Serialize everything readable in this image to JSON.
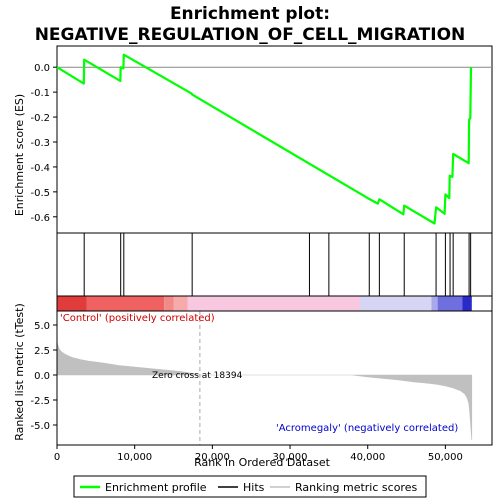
{
  "chart_data": {
    "type": "line",
    "title": "Enrichment plot: NEGATIVE_REGULATION_OF_CELL_MIGRATION",
    "top_panel": {
      "ylabel": "Enrichment score (ES)",
      "ylim": [
        -0.665,
        0.085
      ],
      "yticks": [
        "0.0",
        "-0.1",
        "-0.2",
        "-0.3",
        "-0.4",
        "-0.5",
        "-0.6"
      ],
      "yticks_values": [
        0.0,
        -0.1,
        -0.2,
        -0.3,
        -0.4,
        -0.5,
        -0.6
      ],
      "series": [
        {
          "name": "Enrichment profile",
          "color": "#00ff00",
          "x": [
            0,
            3450,
            3500,
            8150,
            8200,
            8550,
            8600,
            17300,
            17400,
            40000,
            41300,
            41500,
            44600,
            44700,
            48600,
            48800,
            49900,
            50000,
            50500,
            50550,
            50900,
            51000,
            53000,
            53050,
            53200,
            53300
          ],
          "y": [
            0.0,
            -0.066,
            0.03,
            -0.055,
            0.0,
            -0.005,
            0.05,
            -0.105,
            -0.11,
            -0.525,
            -0.547,
            -0.53,
            -0.59,
            -0.555,
            -0.627,
            -0.562,
            -0.588,
            -0.51,
            -0.525,
            -0.435,
            -0.44,
            -0.348,
            -0.385,
            -0.21,
            -0.205,
            0.0
          ]
        }
      ]
    },
    "hits": {
      "name": "Hits",
      "positions": [
        3500,
        8200,
        8600,
        17400,
        32500,
        35000,
        40200,
        41500,
        44700,
        48800,
        50000,
        50600,
        51000,
        53050,
        53250
      ]
    },
    "heatmap_bar": {
      "segments": [
        {
          "from": 0,
          "to": 3800,
          "color": "#e03c3c"
        },
        {
          "from": 3800,
          "to": 13800,
          "color": "#f06262"
        },
        {
          "from": 13800,
          "to": 15000,
          "color": "#f28a8a"
        },
        {
          "from": 15000,
          "to": 16800,
          "color": "#f7aaaa"
        },
        {
          "from": 16800,
          "to": 39000,
          "color": "#f8c8e0"
        },
        {
          "from": 39000,
          "to": 48200,
          "color": "#d6d6f4"
        },
        {
          "from": 48200,
          "to": 49000,
          "color": "#a8a8ec"
        },
        {
          "from": 49000,
          "to": 52200,
          "color": "#6f6fe0"
        },
        {
          "from": 52200,
          "to": 53400,
          "color": "#2a2ac8"
        }
      ]
    },
    "bottom_panel": {
      "ylabel": "Ranked list metric (tTest)",
      "xlabel": "Rank in Ordered Dataset",
      "xlim": [
        0,
        56000
      ],
      "ylim": [
        -7,
        6.4
      ],
      "xticks": [
        "0",
        "10,000",
        "20,000",
        "30,000",
        "40,000",
        "50,000"
      ],
      "xticks_values": [
        0,
        10000,
        20000,
        30000,
        40000,
        50000
      ],
      "yticks": [
        "5.0",
        "2.5",
        "0.0",
        "-2.5",
        "-5.0"
      ],
      "yticks_values": [
        5.0,
        2.5,
        0.0,
        -2.5,
        -5.0
      ],
      "metric_profile": {
        "name": "Ranking metric scores",
        "color": "#c0c0c0",
        "x": [
          0,
          100,
          300,
          600,
          1000,
          1500,
          2000,
          3000,
          4000,
          6000,
          8000,
          10000,
          12000,
          14000,
          16000,
          17500,
          18394,
          20000,
          25000,
          30000,
          35000,
          38000,
          40000,
          42000,
          44000,
          46000,
          48000,
          49000,
          50000,
          51000,
          52000,
          52500,
          52800,
          53000,
          53100,
          53200,
          53300,
          53400
        ],
        "y": [
          3.4,
          3.0,
          2.6,
          2.3,
          2.1,
          1.9,
          1.75,
          1.55,
          1.4,
          1.2,
          0.95,
          0.8,
          0.65,
          0.5,
          0.35,
          0.15,
          0.0,
          0.0,
          0.0,
          0.0,
          0.0,
          0.0,
          -0.2,
          -0.35,
          -0.5,
          -0.7,
          -0.85,
          -0.95,
          -1.1,
          -1.3,
          -1.6,
          -1.9,
          -2.3,
          -2.8,
          -3.5,
          -4.5,
          -5.5,
          -6.5
        ]
      },
      "zero_cross": 18394,
      "zero_cross_label": "Zero cross at 18394",
      "positive_label": "'Control' (positively correlated)",
      "negative_label": "'Acromegaly' (negatively correlated)"
    },
    "legend": [
      {
        "label": "Enrichment profile",
        "color": "#00ff00"
      },
      {
        "label": "Hits",
        "color": "#000000"
      },
      {
        "label": "Ranking metric scores",
        "color": "#c0c0c0"
      }
    ],
    "colors": {
      "positive": "#cc0000",
      "negative": "#0000cc",
      "frame": "#000000"
    },
    "grid": false
  }
}
